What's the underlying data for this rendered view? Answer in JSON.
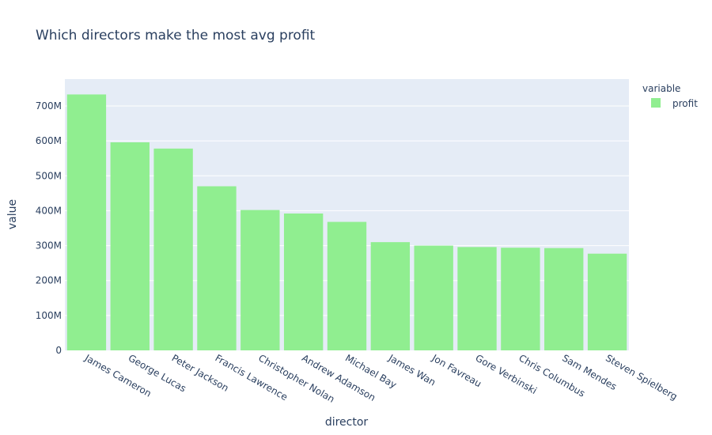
{
  "chart_data": {
    "type": "bar",
    "title": "Which directors make the most avg profit",
    "xlabel": "director",
    "ylabel": "value",
    "categories": [
      "James Cameron",
      "George Lucas",
      "Peter Jackson",
      "Francis Lawrence",
      "Christopher Nolan",
      "Andrew Adamson",
      "Michael Bay",
      "James Wan",
      "Jon Favreau",
      "Gore Verbinski",
      "Chris Columbus",
      "Sam Mendes",
      "Steven Spielberg"
    ],
    "series": [
      {
        "name": "profit",
        "values": [
          733000000,
          596000000,
          578000000,
          470000000,
          402000000,
          392000000,
          368000000,
          310000000,
          300000000,
          296000000,
          294000000,
          293000000,
          277000000
        ]
      }
    ],
    "ylim": [
      0,
      777000000
    ],
    "yticks": [
      0,
      100000000,
      200000000,
      300000000,
      400000000,
      500000000,
      600000000,
      700000000
    ],
    "ytick_labels": [
      "0",
      "100M",
      "200M",
      "300M",
      "400M",
      "500M",
      "600M",
      "700M"
    ],
    "legend_title": "variable",
    "legend_position": "top-right",
    "grid": true,
    "colors": {
      "bar": "#90ee90",
      "plot_bg": "#e5ecf6",
      "grid": "#ffffff",
      "text": "#2a3f5f"
    }
  }
}
